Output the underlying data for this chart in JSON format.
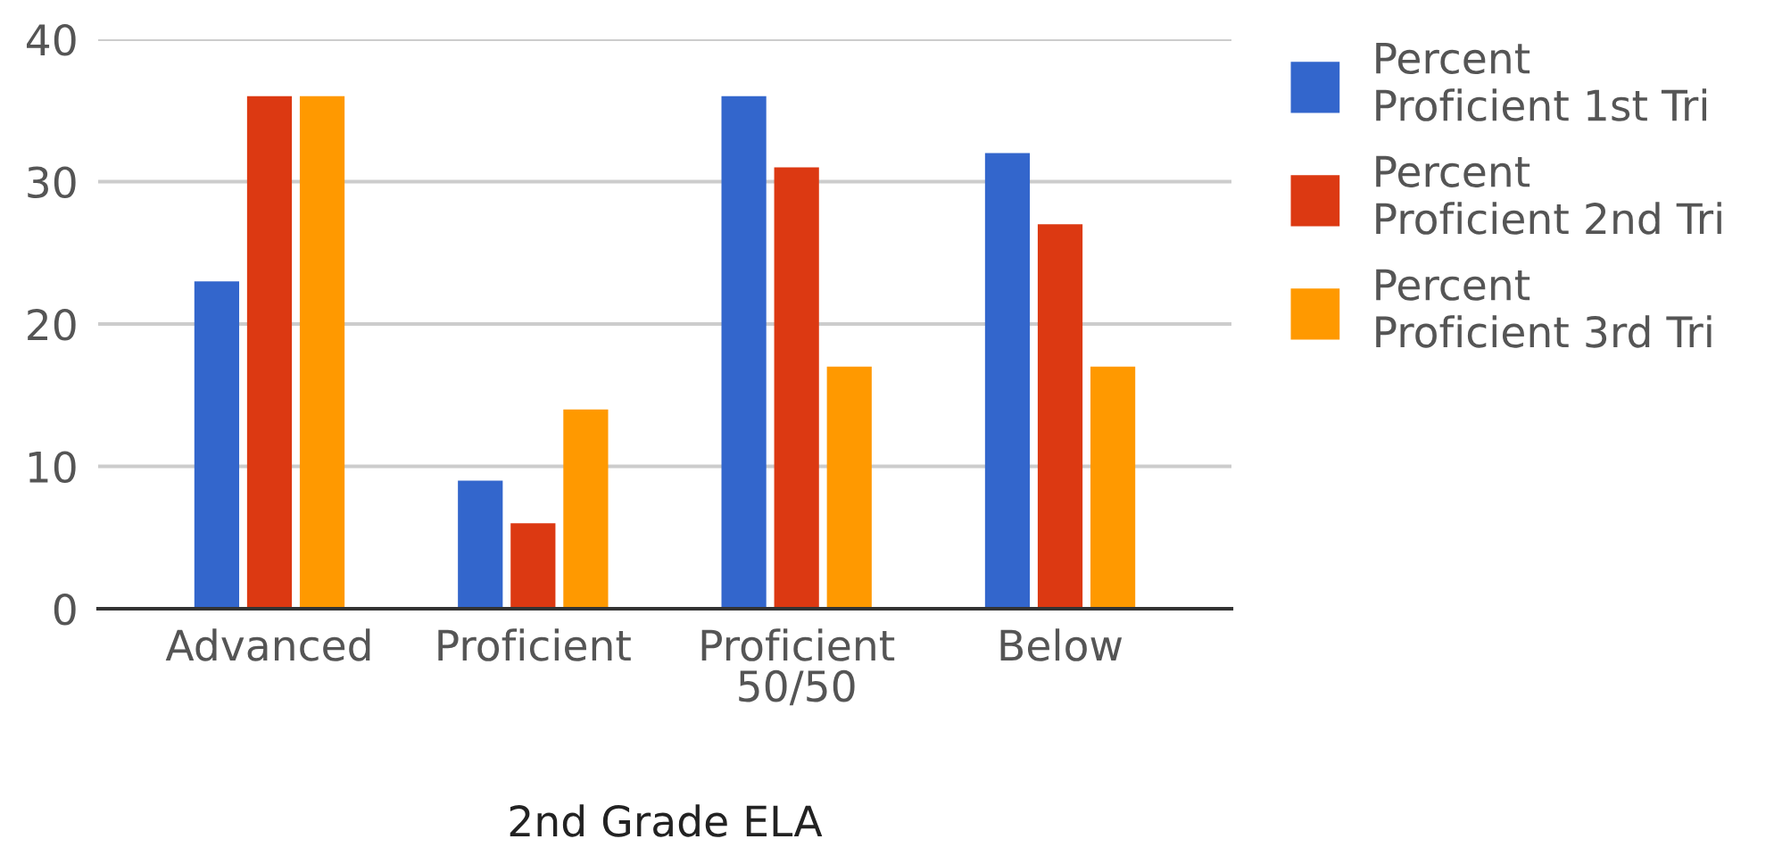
{
  "chart_data": {
    "type": "bar",
    "xlabel": "2nd Grade ELA",
    "categories": [
      "Advanced",
      "Proficient",
      "Proficient 50/50",
      "Below"
    ],
    "series": [
      {
        "name": "Percent Proficient 1st Tri",
        "color": "#3366cc",
        "values": [
          23,
          9,
          36,
          32
        ]
      },
      {
        "name": "Percent Proficient 2nd Tri",
        "color": "#dc3912",
        "values": [
          36,
          6,
          31,
          27
        ]
      },
      {
        "name": "Percent Proficient 3rd Tri",
        "color": "#ff9900",
        "values": [
          36,
          14,
          17,
          17
        ]
      }
    ],
    "ylim": [
      0,
      40
    ],
    "yticks": [
      0,
      10,
      20,
      30,
      40
    ],
    "grid": "y",
    "legend": "right"
  }
}
